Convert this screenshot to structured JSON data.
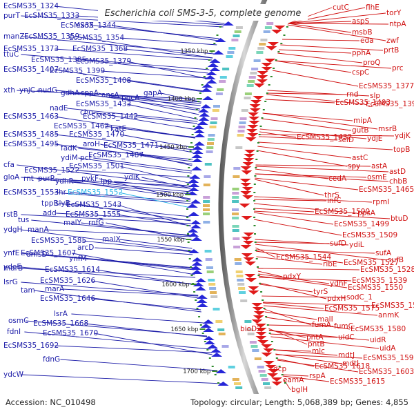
{
  "title": "Escherichia coli SMS-3-5, complete genome",
  "footer": {
    "accession": "Accession: NC_010498",
    "summary": "Topology: circular; Length: 5,068,389 bp; Genes: 4,855"
  },
  "colors": {
    "left_genes": "#1c1ca8",
    "right_genes": "#d01010",
    "highlight": "#27b3e8",
    "backbone": "#8a8a8a",
    "ticks": "#3a8a2a"
  },
  "tick_labels": [
    "1350 kbp",
    "1400 kbp",
    "1450 kbp",
    "1500 kbp",
    "1550 kbp",
    "1600 kbp",
    "1650 kbp",
    "1700 kbp"
  ],
  "left_labels": [
    {
      "text": "EcSMS35_1324"
    },
    {
      "text": "purT"
    },
    {
      "text": "EcSMS35_1333"
    },
    {
      "text": "EcSMS35_1344"
    },
    {
      "text": "exoX"
    },
    {
      "text": "manZ"
    },
    {
      "text": "EcSMS35_1359"
    },
    {
      "text": "EcSMS35_1354"
    },
    {
      "text": "EcSMS35_1373"
    },
    {
      "text": "EcSMS35_1368"
    },
    {
      "text": "ttuC"
    },
    {
      "text": "EcSMS35_1385"
    },
    {
      "text": "EcSMS35_1379"
    },
    {
      "text": "EcSMS35_1407"
    },
    {
      "text": "EcSMS35_1399"
    },
    {
      "text": "EcSMS35_1408"
    },
    {
      "text": "xth"
    },
    {
      "text": "ynjC"
    },
    {
      "text": "nudG"
    },
    {
      "text": "gdhA"
    },
    {
      "text": "sppA"
    },
    {
      "text": "ansA"
    },
    {
      "text": "pncA"
    },
    {
      "text": "gapA"
    },
    {
      "text": "EcSMS35_1433"
    },
    {
      "text": "nadE"
    },
    {
      "text": "cho"
    },
    {
      "text": "EcSMS35_1463"
    },
    {
      "text": "EcSMS35_1442"
    },
    {
      "text": "EcSMS35_1462"
    },
    {
      "text": "katE"
    },
    {
      "text": "EcSMS35_1485"
    },
    {
      "text": "EcSMS35_1470"
    },
    {
      "text": "EcSMS35_1495"
    },
    {
      "text": "aroH"
    },
    {
      "text": "EcSMS35_1471"
    },
    {
      "text": "fadK"
    },
    {
      "text": "EcSMS35_1487"
    },
    {
      "text": "ydiM"
    },
    {
      "text": "pct"
    },
    {
      "text": "EcSMS35_1501"
    },
    {
      "text": "cfa"
    },
    {
      "text": "EcSMS35_1522"
    },
    {
      "text": "ydiK"
    },
    {
      "text": "gloA"
    },
    {
      "text": "rnt"
    },
    {
      "text": "purR"
    },
    {
      "text": "ydhR"
    },
    {
      "text": "pykF"
    },
    {
      "text": "lpp"
    },
    {
      "text": "EcSMS35_1553"
    },
    {
      "text": "lhr"
    },
    {
      "text": "EcSMS35_1552",
      "hl": true
    },
    {
      "text": "tppB"
    },
    {
      "text": "slyB"
    },
    {
      "text": "EcSMS35_1543"
    },
    {
      "text": "add"
    },
    {
      "text": "EcSMS35_1555"
    },
    {
      "text": "rstB"
    },
    {
      "text": "tus"
    },
    {
      "text": "malY"
    },
    {
      "text": "rnfG"
    },
    {
      "text": "ydgH"
    },
    {
      "text": "manA"
    },
    {
      "text": "EcSMS35_1585"
    },
    {
      "text": "malX"
    },
    {
      "text": "ynfE"
    },
    {
      "text": "dmsD"
    },
    {
      "text": "ydeE"
    },
    {
      "text": "EcSMS35_1607"
    },
    {
      "text": "arcD"
    },
    {
      "text": "ynfM"
    },
    {
      "text": "marB"
    },
    {
      "text": "EcSMS35_1614"
    },
    {
      "text": "lsrG"
    },
    {
      "text": "EcSMS35_1626"
    },
    {
      "text": "tam"
    },
    {
      "text": "marA"
    },
    {
      "text": "EcSMS35_1646"
    },
    {
      "text": "lsrA"
    },
    {
      "text": "osmC"
    },
    {
      "text": "EcSMS35_1668"
    },
    {
      "text": "fdnI"
    },
    {
      "text": "EcSMS35_1670"
    },
    {
      "text": "EcSMS35_1692"
    },
    {
      "text": "fdnG"
    },
    {
      "text": "ydcW"
    }
  ],
  "right_labels": [
    {
      "text": "cutC"
    },
    {
      "text": "flhE"
    },
    {
      "text": "torY"
    },
    {
      "text": "aspS"
    },
    {
      "text": "ntpA"
    },
    {
      "text": "msbB"
    },
    {
      "text": "zwf"
    },
    {
      "text": "eda"
    },
    {
      "text": "prtB"
    },
    {
      "text": "pphA"
    },
    {
      "text": "proQ"
    },
    {
      "text": "prc"
    },
    {
      "text": "cspC"
    },
    {
      "text": "EcSMS35_1377"
    },
    {
      "text": "rnd"
    },
    {
      "text": "slp"
    },
    {
      "text": "EcSMS35_1403"
    },
    {
      "text": "EcSMS35_1395"
    },
    {
      "text": "mipA"
    },
    {
      "text": "gutB"
    },
    {
      "text": "msrB"
    },
    {
      "text": "ydjK"
    },
    {
      "text": "EcSMS35_1432"
    },
    {
      "text": "selD"
    },
    {
      "text": "ydjE"
    },
    {
      "text": "topB"
    },
    {
      "text": "astC"
    },
    {
      "text": "spy"
    },
    {
      "text": "astA"
    },
    {
      "text": "astD"
    },
    {
      "text": "osmE"
    },
    {
      "text": "cedA"
    },
    {
      "text": "chbB"
    },
    {
      "text": "EcSMS35_1465"
    },
    {
      "text": "thrS"
    },
    {
      "text": "infC"
    },
    {
      "text": "rpmI"
    },
    {
      "text": "EcSMS35_1500"
    },
    {
      "text": "ppsA"
    },
    {
      "text": "btuD"
    },
    {
      "text": "EcSMS35_1499"
    },
    {
      "text": "EcSMS35_1509"
    },
    {
      "text": "sufD"
    },
    {
      "text": "ydiL"
    },
    {
      "text": "sufA"
    },
    {
      "text": "EcSMS35_1544"
    },
    {
      "text": "ribE"
    },
    {
      "text": "EcSMS35_1527"
    },
    {
      "text": "sufB"
    },
    {
      "text": "EcSMS35_1528"
    },
    {
      "text": "pdxY"
    },
    {
      "text": "EcSMS35_1539"
    },
    {
      "text": "ydhF"
    },
    {
      "text": "tyrS"
    },
    {
      "text": "EcSMS35_1550"
    },
    {
      "text": "pdxH"
    },
    {
      "text": "sodC_1"
    },
    {
      "text": "EcSMS35_1575"
    },
    {
      "text": "EcSMS35_1556"
    },
    {
      "text": "anmK"
    },
    {
      "text": "malI"
    },
    {
      "text": "EcSMS35_1580"
    },
    {
      "text": "fumA"
    },
    {
      "text": "fumC"
    },
    {
      "text": "bioD2"
    },
    {
      "text": "uidC"
    },
    {
      "text": "uidR"
    },
    {
      "text": "pntA"
    },
    {
      "text": "uidA"
    },
    {
      "text": "pntB"
    },
    {
      "text": "mlc"
    },
    {
      "text": "mdtJ"
    },
    {
      "text": "EcSMS35_1593"
    },
    {
      "text": "mdtI"
    },
    {
      "text": "EcSMS35_1618"
    },
    {
      "text": "EcSMS35_1603"
    },
    {
      "text": "dcp"
    },
    {
      "text": "rspA"
    },
    {
      "text": "EcSMS35_1615"
    },
    {
      "text": "eamA"
    },
    {
      "text": "bglH"
    }
  ]
}
